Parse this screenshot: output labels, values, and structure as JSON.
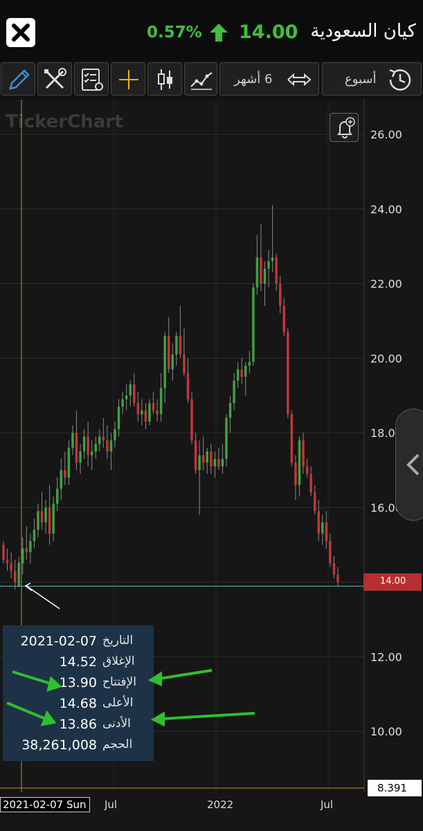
{
  "header": {
    "title": "كيان السعودية",
    "change_pct": "0.57%",
    "last_price": "14.00",
    "trend_color": "#3fbf3f"
  },
  "toolbar": {
    "period_label": "6 أشهر",
    "interval_label": "أسبوع",
    "icons": [
      "pencil-icon",
      "tools-icon",
      "checklist-settings-icon",
      "crosshair-icon",
      "candlestick-icon",
      "indicator-icon",
      "swap-arrows-icon",
      "history-icon"
    ]
  },
  "watermark": "TickerChart",
  "chart_data": {
    "type": "candlestick",
    "interval": "week",
    "y_ticks": [
      "26.00",
      "24.00",
      "22.00",
      "20.00",
      "18.00",
      "16.00",
      "14.00",
      "12.00",
      "10.00"
    ],
    "ylim": [
      8.39,
      26.5
    ],
    "x_ticks": [
      "Jul",
      "2022",
      "Jul"
    ],
    "last_price_label": "14.00",
    "volume_axis_label": "8.391",
    "crosshair_date": "2021-02-07 Sun",
    "up_color": "#3fa33f",
    "down_color": "#c03838",
    "candles": [
      [
        15.0,
        15.1,
        14.5,
        14.6
      ],
      [
        14.6,
        14.9,
        14.3,
        14.5
      ],
      [
        14.5,
        14.8,
        14.1,
        14.3
      ],
      [
        14.3,
        14.6,
        13.8,
        14.0
      ],
      [
        13.9,
        14.68,
        13.86,
        14.52
      ],
      [
        14.5,
        15.2,
        14.2,
        14.9
      ],
      [
        14.9,
        15.5,
        14.6,
        14.8
      ],
      [
        14.8,
        15.3,
        14.5,
        15.1
      ],
      [
        15.1,
        15.7,
        14.9,
        15.4
      ],
      [
        15.4,
        16.1,
        15.2,
        15.9
      ],
      [
        15.9,
        16.4,
        15.4,
        15.6
      ],
      [
        15.6,
        16.2,
        15.3,
        16.0
      ],
      [
        16.0,
        16.6,
        15.0,
        15.3
      ],
      [
        15.3,
        16.3,
        15.1,
        16.1
      ],
      [
        16.1,
        16.8,
        15.9,
        16.5
      ],
      [
        16.5,
        17.3,
        16.2,
        17.0
      ],
      [
        17.0,
        17.5,
        16.6,
        16.8
      ],
      [
        16.8,
        17.8,
        16.6,
        17.6
      ],
      [
        17.6,
        18.2,
        17.4,
        18.0
      ],
      [
        18.0,
        18.6,
        17.0,
        17.2
      ],
      [
        17.2,
        17.7,
        16.9,
        17.5
      ],
      [
        17.5,
        18.1,
        17.3,
        17.9
      ],
      [
        17.9,
        18.3,
        17.1,
        17.4
      ],
      [
        17.4,
        17.8,
        17.0,
        17.5
      ],
      [
        17.5,
        17.9,
        17.3,
        17.7
      ],
      [
        17.7,
        18.1,
        17.5,
        17.9
      ],
      [
        17.9,
        18.4,
        17.6,
        17.8
      ],
      [
        17.8,
        18.2,
        17.3,
        17.5
      ],
      [
        17.5,
        18.0,
        17.0,
        17.8
      ],
      [
        17.8,
        18.3,
        17.6,
        18.1
      ],
      [
        18.1,
        18.9,
        17.9,
        18.7
      ],
      [
        18.7,
        19.1,
        18.5,
        18.9
      ],
      [
        18.9,
        19.3,
        18.6,
        19.0
      ],
      [
        19.0,
        19.4,
        18.7,
        19.3
      ],
      [
        19.3,
        19.6,
        18.7,
        18.8
      ],
      [
        18.8,
        19.1,
        18.3,
        18.5
      ],
      [
        18.5,
        18.9,
        18.2,
        18.6
      ],
      [
        18.6,
        18.8,
        18.1,
        18.3
      ],
      [
        18.3,
        18.9,
        18.2,
        18.8
      ],
      [
        18.8,
        19.1,
        18.5,
        18.6
      ],
      [
        18.6,
        18.9,
        18.3,
        18.5
      ],
      [
        18.5,
        19.6,
        18.3,
        19.2
      ],
      [
        19.2,
        20.7,
        18.8,
        20.6
      ],
      [
        20.6,
        21.1,
        19.6,
        19.7
      ],
      [
        19.7,
        20.4,
        19.4,
        20.1
      ],
      [
        20.1,
        20.7,
        19.8,
        20.6
      ],
      [
        20.6,
        21.4,
        20.0,
        20.1
      ],
      [
        20.1,
        20.8,
        19.5,
        19.6
      ],
      [
        19.6,
        20.0,
        18.8,
        18.9
      ],
      [
        18.9,
        19.1,
        17.7,
        17.8
      ],
      [
        17.8,
        18.0,
        16.9,
        17.0
      ],
      [
        17.0,
        17.8,
        15.8,
        17.4
      ],
      [
        17.4,
        17.9,
        17.0,
        17.2
      ],
      [
        17.2,
        17.6,
        16.9,
        17.5
      ],
      [
        17.5,
        17.7,
        16.9,
        17.1
      ],
      [
        17.1,
        17.5,
        16.8,
        17.3
      ],
      [
        17.3,
        17.6,
        17.0,
        17.1
      ],
      [
        17.1,
        17.7,
        16.9,
        17.3
      ],
      [
        17.3,
        18.5,
        17.1,
        18.4
      ],
      [
        18.4,
        19.0,
        18.0,
        18.8
      ],
      [
        18.8,
        19.6,
        18.6,
        19.4
      ],
      [
        19.4,
        19.9,
        19.2,
        19.7
      ],
      [
        19.7,
        20.0,
        19.3,
        19.5
      ],
      [
        19.5,
        19.9,
        19.0,
        19.8
      ],
      [
        19.8,
        20.2,
        19.6,
        19.9
      ],
      [
        19.9,
        22.0,
        19.8,
        21.9
      ],
      [
        21.9,
        23.3,
        21.7,
        22.7
      ],
      [
        22.7,
        23.6,
        21.8,
        22.0
      ],
      [
        22.0,
        22.6,
        21.4,
        22.4
      ],
      [
        22.4,
        22.9,
        21.9,
        22.6
      ],
      [
        22.6,
        24.1,
        22.3,
        22.7
      ],
      [
        22.7,
        22.8,
        21.8,
        22.0
      ],
      [
        22.0,
        22.2,
        21.2,
        21.4
      ],
      [
        21.4,
        21.6,
        20.6,
        20.7
      ],
      [
        20.7,
        20.8,
        18.4,
        18.5
      ],
      [
        18.5,
        18.6,
        17.1,
        17.2
      ],
      [
        17.2,
        17.4,
        16.2,
        16.6
      ],
      [
        16.6,
        17.9,
        16.3,
        17.8
      ],
      [
        17.8,
        18.0,
        16.9,
        17.1
      ],
      [
        17.1,
        17.3,
        16.8,
        16.9
      ],
      [
        16.9,
        17.1,
        16.3,
        16.4
      ],
      [
        16.4,
        16.6,
        15.8,
        15.9
      ],
      [
        15.9,
        16.2,
        15.1,
        15.3
      ],
      [
        15.3,
        15.8,
        15.0,
        15.6
      ],
      [
        15.6,
        15.9,
        14.9,
        15.1
      ],
      [
        15.1,
        15.3,
        14.4,
        14.5
      ],
      [
        14.5,
        14.7,
        14.1,
        14.2
      ],
      [
        14.2,
        14.4,
        13.9,
        14.0
      ]
    ]
  },
  "info": {
    "rows": [
      {
        "label": "التاريخ",
        "value": "2021-02-07"
      },
      {
        "label": "الإغلاق",
        "value": "14.52"
      },
      {
        "label": "الإفتتاح",
        "value": "13.90"
      },
      {
        "label": "الأعلى",
        "value": "14.68"
      },
      {
        "label": "الأدنى",
        "value": "13.86"
      },
      {
        "label": "الحجم",
        "value": "38,261,008"
      }
    ]
  },
  "colors": {
    "background": "#161616",
    "grid": "#333333",
    "crosshair": "#c88a2a",
    "price_line": "#5fb0b8",
    "info_bg": "#1d3246",
    "annotation_arrow": "#2fbf2f"
  }
}
